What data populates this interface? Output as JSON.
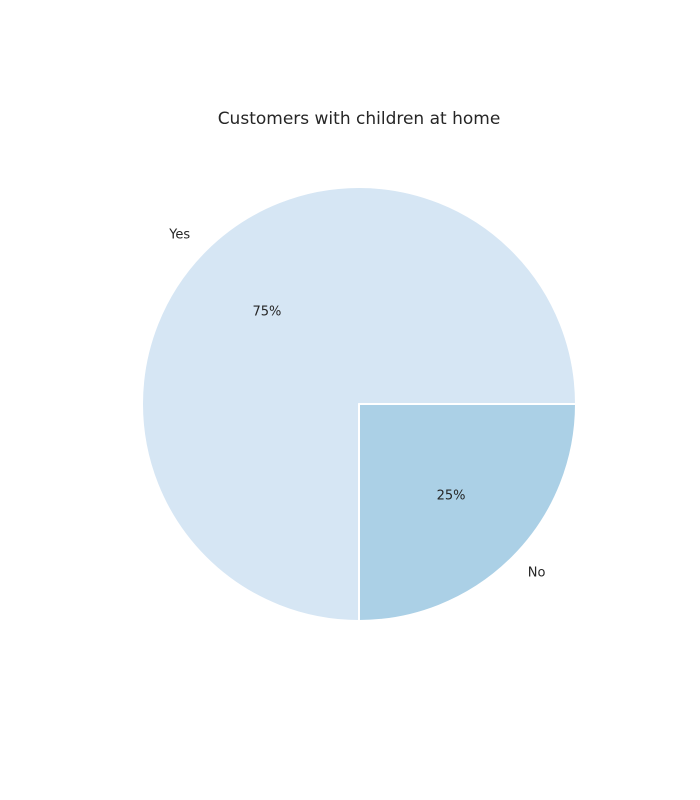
{
  "chart_data": {
    "type": "pie",
    "title": "Customers with children at home",
    "categories": [
      "Yes",
      "No"
    ],
    "values": [
      75,
      25
    ],
    "value_labels": [
      "75%",
      "25%"
    ],
    "colors": [
      "#d6e6f4",
      "#abd0e6"
    ],
    "start_angle_deg": 0,
    "direction": "counterclockwise",
    "legend": "none"
  }
}
